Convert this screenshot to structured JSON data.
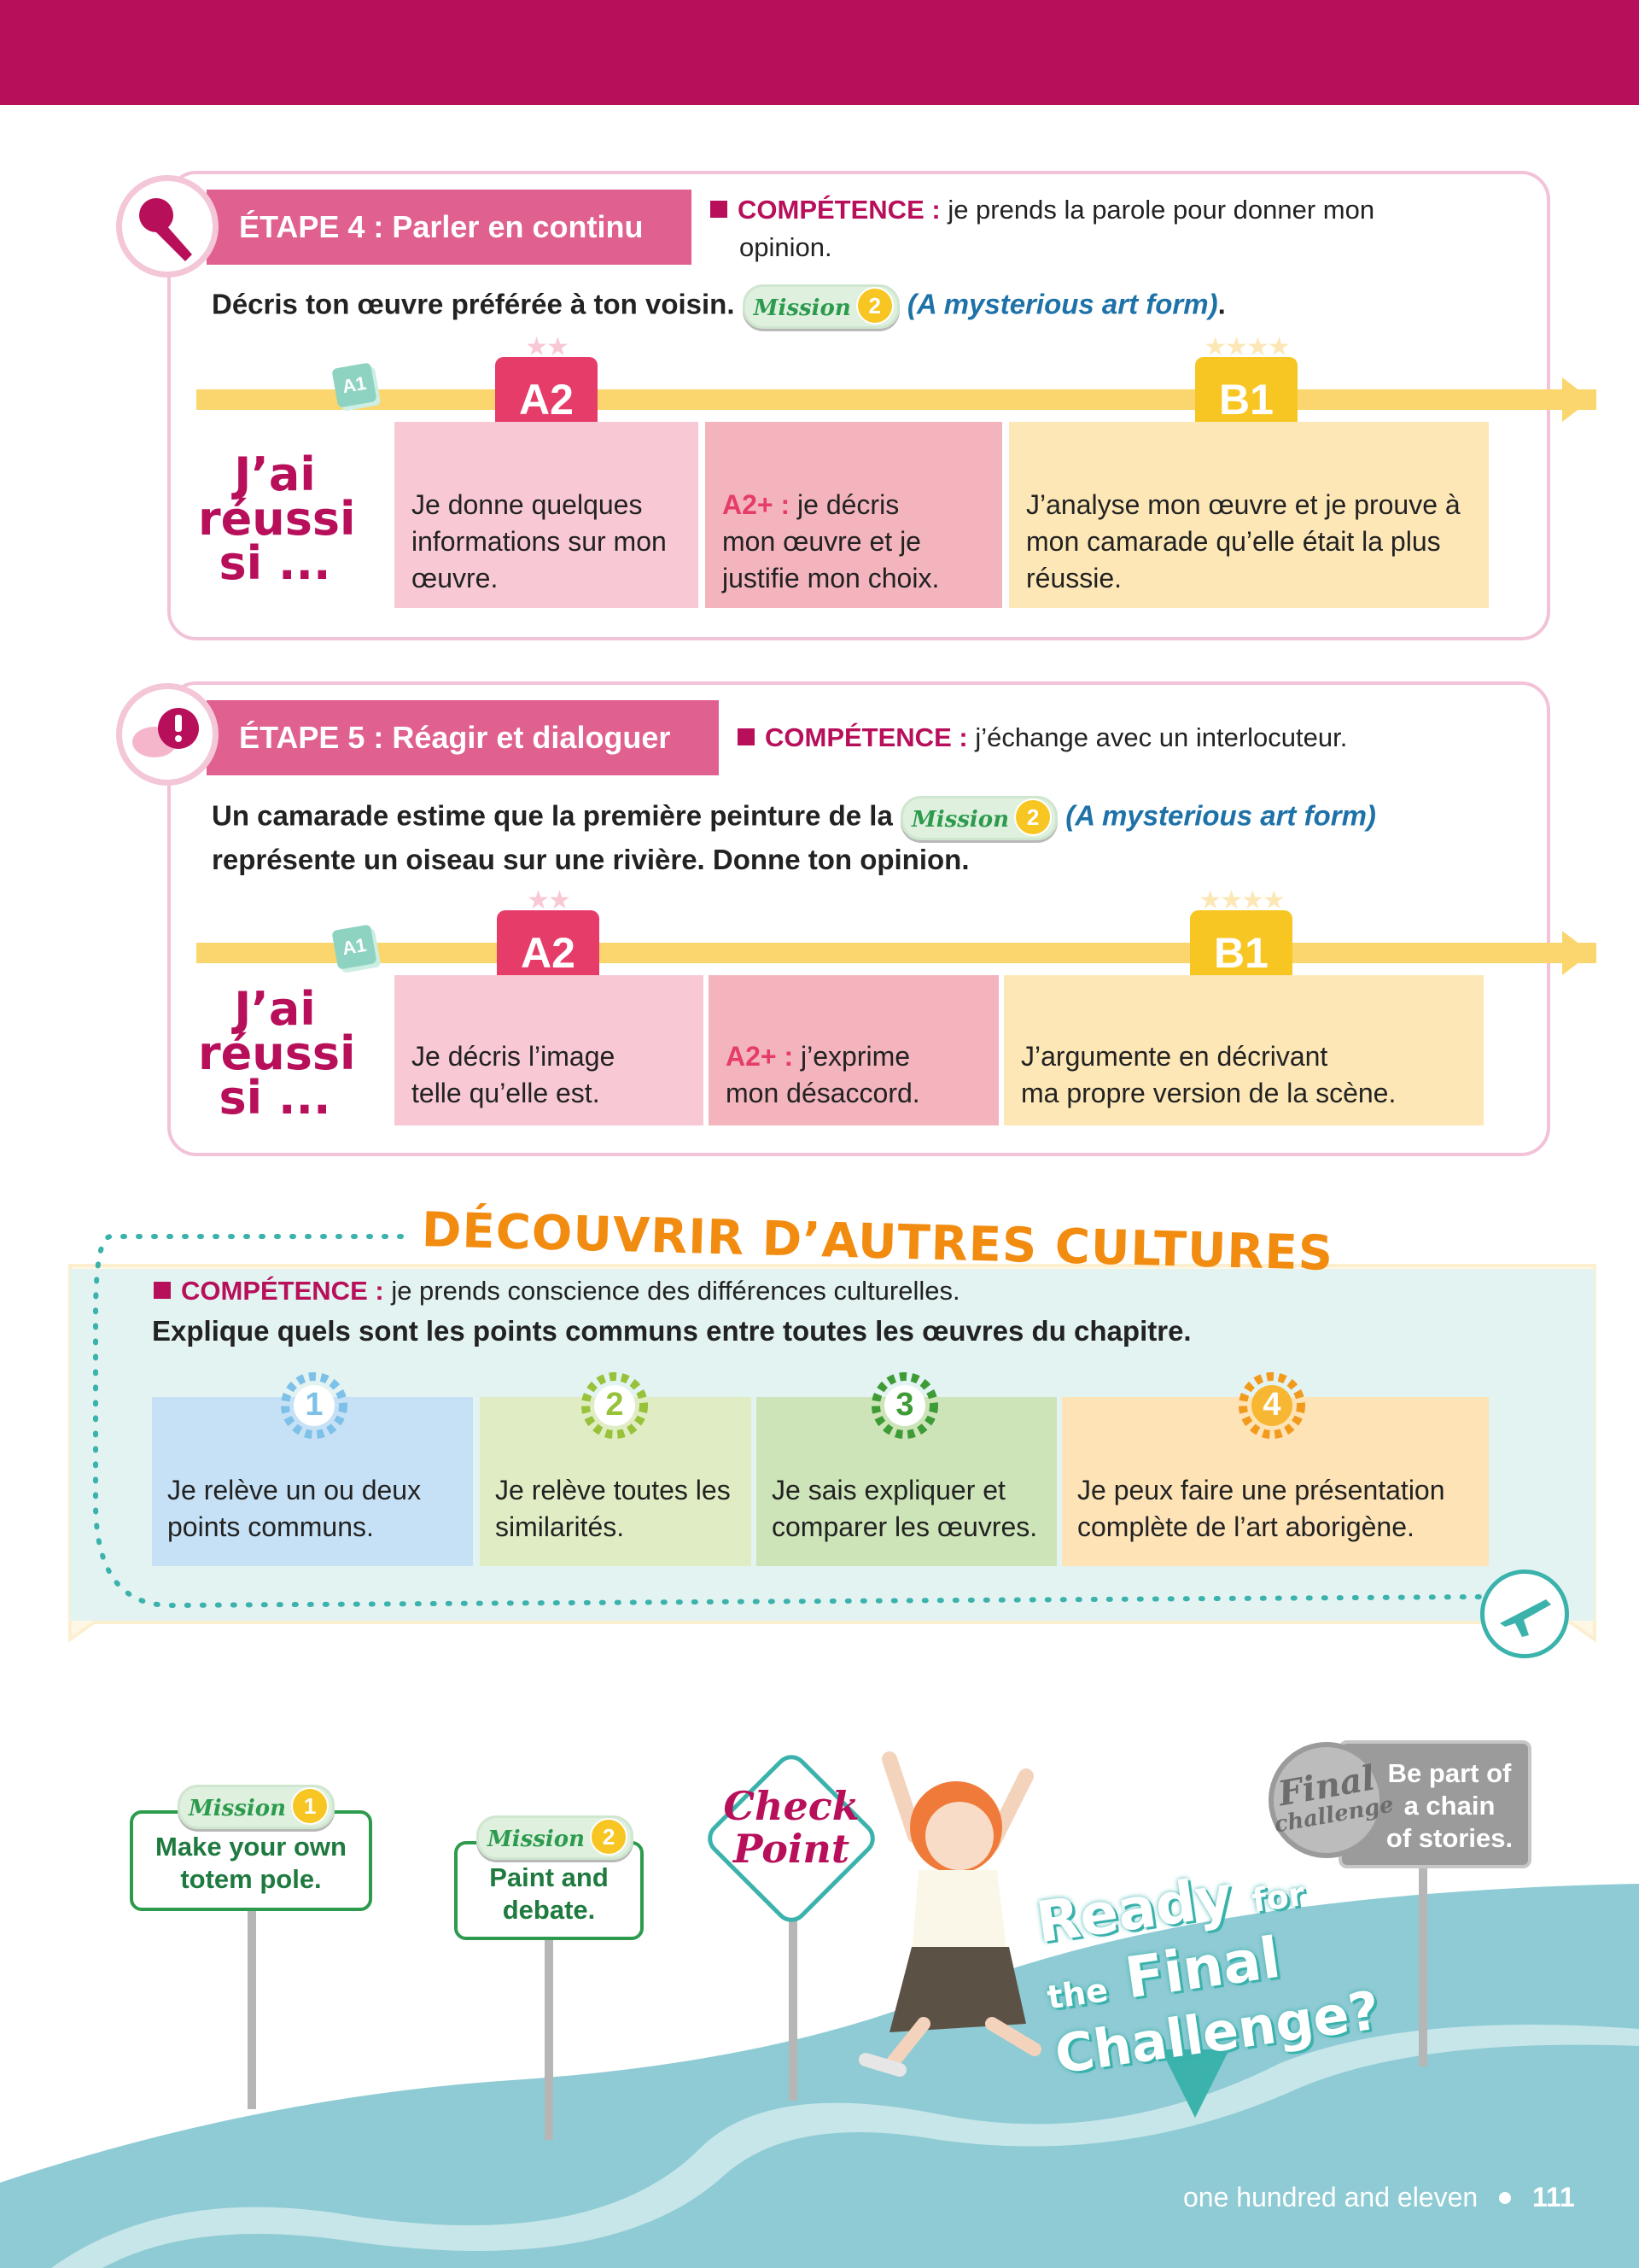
{
  "etape4": {
    "title": "ÉTAPE 4 : Parler en continu",
    "competence_label": "COMPÉTENCE :",
    "competence_text_1": "je prends la parole pour donner mon",
    "competence_text_2": "opinion.",
    "task_text": "Décris ton œuvre préférée à ton voisin.",
    "mission_word": "Mission",
    "mission_num": "2",
    "mission_title": "(A mysterious art form)",
    "period": ".",
    "a1": "A1",
    "a2": "A2",
    "b1": "B1",
    "a2_stars": "★★",
    "b1_stars": "★★★★",
    "reussi_1": "J’ai",
    "reussi_2": "réussi",
    "reussi_3": "si ...",
    "cell_a2_1": "Je donne quelques",
    "cell_a2_2": "informations sur mon",
    "cell_a2_3": "œuvre.",
    "cell_a2p_label": "A2+ :",
    "cell_a2p_1": " je décris",
    "cell_a2p_2": "mon œuvre et je",
    "cell_a2p_3": "justifie mon choix.",
    "cell_b1_1": "J’analyse mon œuvre et je prouve à",
    "cell_b1_2": "mon camarade qu’elle était la plus",
    "cell_b1_3": "réussie."
  },
  "etape5": {
    "title": "ÉTAPE 5 : Réagir et dialoguer",
    "competence_label": "COMPÉTENCE :",
    "competence_text": "j’échange avec un interlocuteur.",
    "task_line1": "Un camarade estime que la première peinture de la",
    "mission_word": "Mission",
    "mission_num": "2",
    "mission_title": "(A mysterious art form)",
    "task_line2": "représente un oiseau sur une rivière. Donne ton opinion.",
    "a1": "A1",
    "a2": "A2",
    "b1": "B1",
    "a2_stars": "★★",
    "b1_stars": "★★★★",
    "reussi_1": "J’ai",
    "reussi_2": "réussi",
    "reussi_3": "si ...",
    "cell_a2_1": "Je décris l’image",
    "cell_a2_2": "telle qu’elle est.",
    "cell_a2p_label": "A2+ :",
    "cell_a2p_1": " j’exprime",
    "cell_a2p_2": "mon désaccord.",
    "cell_b1_1": "J’argumente en décrivant",
    "cell_b1_2": "ma propre version de la scène."
  },
  "cultures": {
    "title": "DÉCOUVRIR D’AUTRES CULTURES",
    "competence_label": "COMPÉTENCE :",
    "competence_text": "je prends conscience des différences culturelles.",
    "task": "Explique quels sont les points communs entre toutes les œuvres du chapitre.",
    "levels": [
      {
        "num": "1",
        "line1": "Je relève un ou deux",
        "line2": "points communs."
      },
      {
        "num": "2",
        "line1": "Je relève toutes les",
        "line2": "similarités."
      },
      {
        "num": "3",
        "line1": "Je sais expliquer et",
        "line2": "comparer les œuvres."
      },
      {
        "num": "4",
        "line1": "Je peux faire une présentation",
        "line2": "complète de l’art aborigène."
      }
    ]
  },
  "signs": {
    "mission1_word": "Mission",
    "mission1_num": "1",
    "mission1_line1": "Make your own",
    "mission1_line2": "totem pole.",
    "mission2_word": "Mission",
    "mission2_num": "2",
    "mission2_line1": "Paint and",
    "mission2_line2": "debate.",
    "check_1": "Check",
    "check_2": "Point",
    "final_1": "Final",
    "final_2": "challenge",
    "final_text_1": "Be part of",
    "final_text_2": "a chain",
    "final_text_3": "of stories.",
    "ready_1": "Ready",
    "ready_2": "for",
    "ready_3": "the",
    "ready_4": "Final",
    "ready_5": "Challenge",
    "ready_6": "?"
  },
  "footer": {
    "page_words": "one hundred and eleven",
    "page_number": "111"
  }
}
